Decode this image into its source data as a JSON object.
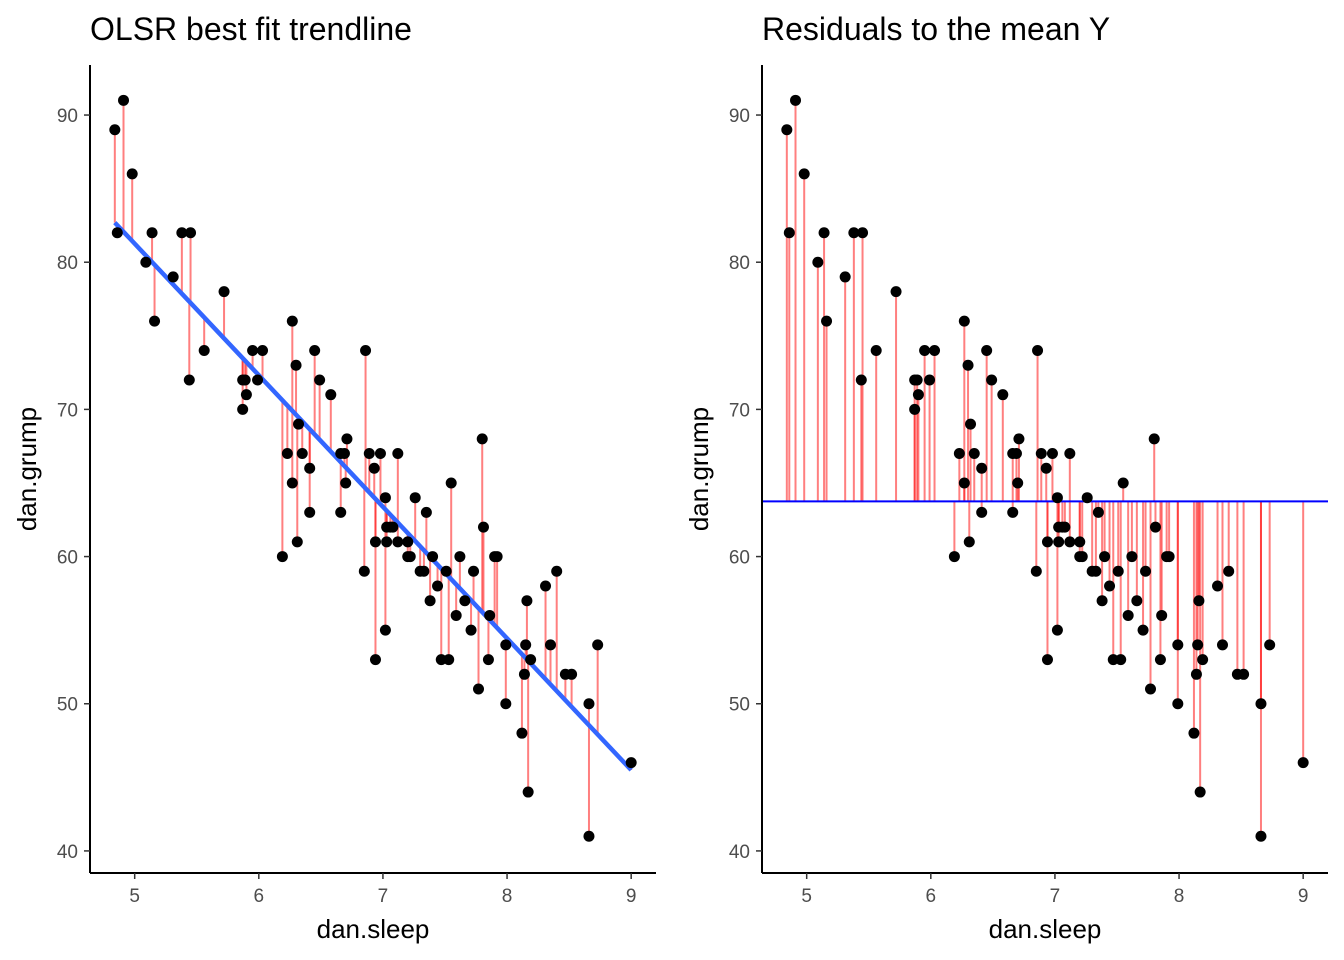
{
  "chart_data": [
    {
      "type": "scatter",
      "title": "OLSR best fit trendline",
      "xlabel": "dan.sleep",
      "ylabel": "dan.grump",
      "xticks": [
        "5",
        "6",
        "7",
        "8",
        "9"
      ],
      "yticks": [
        "40",
        "50",
        "60",
        "70",
        "80",
        "90"
      ],
      "xlim": [
        4.64,
        9.2
      ],
      "ylim": [
        38.5,
        93.4
      ],
      "grid": false,
      "reference": "regression",
      "regression": {
        "intercept": 125.96,
        "slope": -8.94,
        "color": "#3366ff"
      },
      "residual_color": "#ff0000",
      "point_color": "#000000"
    },
    {
      "type": "scatter",
      "title": "Residuals to the mean Y",
      "xlabel": "dan.sleep",
      "ylabel": "dan.grump",
      "xticks": [
        "5",
        "6",
        "7",
        "8",
        "9"
      ],
      "yticks": [
        "40",
        "50",
        "60",
        "70",
        "80",
        "90"
      ],
      "xlim": [
        4.64,
        9.2
      ],
      "ylim": [
        38.5,
        93.4
      ],
      "grid": false,
      "reference": "mean",
      "mean_y": 63.75,
      "mean_color": "#0000ff",
      "residual_color": "#ff0000",
      "point_color": "#000000"
    }
  ],
  "points": [
    [
      4.84,
      89
    ],
    [
      4.86,
      82
    ],
    [
      4.91,
      91
    ],
    [
      4.98,
      86
    ],
    [
      5.09,
      80
    ],
    [
      5.14,
      82
    ],
    [
      5.16,
      76
    ],
    [
      5.31,
      79
    ],
    [
      5.38,
      82
    ],
    [
      5.45,
      82
    ],
    [
      5.44,
      72
    ],
    [
      5.56,
      74
    ],
    [
      5.72,
      78
    ],
    [
      5.87,
      72
    ],
    [
      5.87,
      70
    ],
    [
      5.89,
      72
    ],
    [
      5.9,
      71
    ],
    [
      5.95,
      74
    ],
    [
      5.99,
      72
    ],
    [
      6.03,
      74
    ],
    [
      6.19,
      60
    ],
    [
      6.23,
      67
    ],
    [
      6.27,
      76
    ],
    [
      6.27,
      65
    ],
    [
      6.3,
      73
    ],
    [
      6.31,
      61
    ],
    [
      6.32,
      69
    ],
    [
      6.35,
      67
    ],
    [
      6.41,
      66
    ],
    [
      6.41,
      63
    ],
    [
      6.45,
      74
    ],
    [
      6.49,
      72
    ],
    [
      6.58,
      71
    ],
    [
      6.66,
      67
    ],
    [
      6.66,
      63
    ],
    [
      6.69,
      67
    ],
    [
      6.7,
      65
    ],
    [
      6.71,
      68
    ],
    [
      6.85,
      59
    ],
    [
      6.86,
      74
    ],
    [
      6.89,
      67
    ],
    [
      6.93,
      66
    ],
    [
      6.94,
      53
    ],
    [
      6.94,
      61
    ],
    [
      6.98,
      67
    ],
    [
      7.02,
      64
    ],
    [
      7.02,
      55
    ],
    [
      7.03,
      62
    ],
    [
      7.03,
      61
    ],
    [
      7.06,
      62
    ],
    [
      7.08,
      62
    ],
    [
      7.12,
      61
    ],
    [
      7.12,
      67
    ],
    [
      7.2,
      60
    ],
    [
      7.2,
      61
    ],
    [
      7.22,
      60
    ],
    [
      7.26,
      64
    ],
    [
      7.3,
      59
    ],
    [
      7.33,
      59
    ],
    [
      7.35,
      63
    ],
    [
      7.38,
      57
    ],
    [
      7.4,
      60
    ],
    [
      7.44,
      58
    ],
    [
      7.47,
      53
    ],
    [
      7.51,
      59
    ],
    [
      7.53,
      53
    ],
    [
      7.55,
      65
    ],
    [
      7.59,
      56
    ],
    [
      7.62,
      60
    ],
    [
      7.66,
      57
    ],
    [
      7.71,
      55
    ],
    [
      7.73,
      59
    ],
    [
      7.77,
      51
    ],
    [
      7.8,
      68
    ],
    [
      7.81,
      62
    ],
    [
      7.85,
      53
    ],
    [
      7.86,
      56
    ],
    [
      7.9,
      60
    ],
    [
      7.92,
      60
    ],
    [
      7.99,
      54
    ],
    [
      7.99,
      50
    ],
    [
      8.12,
      48
    ],
    [
      8.14,
      52
    ],
    [
      8.15,
      54
    ],
    [
      8.16,
      57
    ],
    [
      8.17,
      44
    ],
    [
      8.19,
      53
    ],
    [
      8.31,
      58
    ],
    [
      8.35,
      54
    ],
    [
      8.4,
      59
    ],
    [
      8.47,
      52
    ],
    [
      8.52,
      52
    ],
    [
      8.66,
      50
    ],
    [
      8.66,
      41
    ],
    [
      8.73,
      54
    ],
    [
      9.0,
      46
    ]
  ]
}
